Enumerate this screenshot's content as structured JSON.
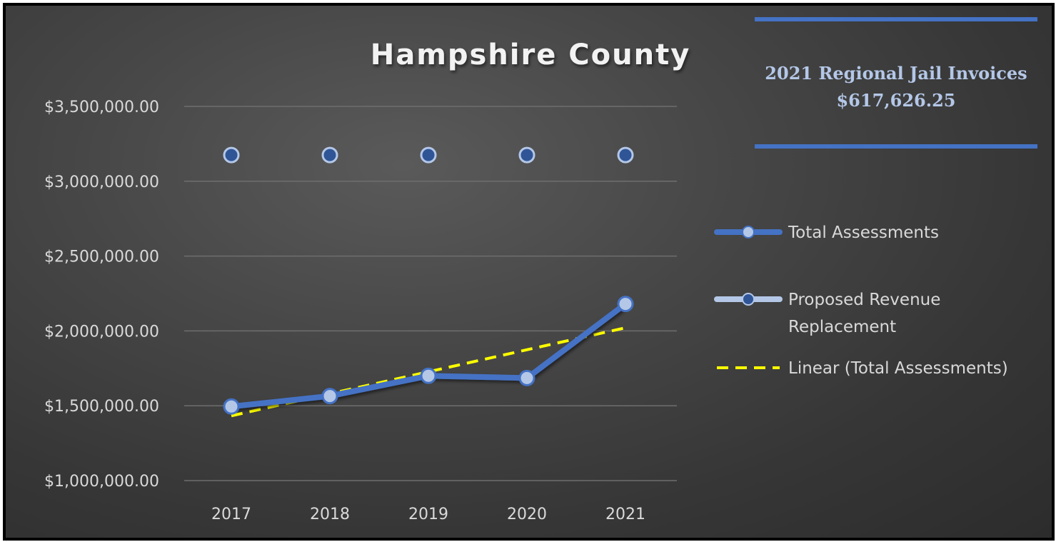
{
  "info_box": {
    "line1": "2021 Regional Jail Invoices",
    "line2": "$617,626.25"
  },
  "chart_data": {
    "type": "line",
    "title": "Hampshire County",
    "xlabel": "",
    "ylabel": "",
    "categories": [
      "2017",
      "2018",
      "2019",
      "2020",
      "2021"
    ],
    "ylim": [
      1000000,
      3500000
    ],
    "yticks": [
      1000000,
      1500000,
      2000000,
      2500000,
      3000000,
      3500000
    ],
    "ytick_labels": [
      "$1,000,000.00",
      "$1,500,000.00",
      "$2,000,000.00",
      "$2,500,000.00",
      "$3,000,000.00",
      "$3,500,000.00"
    ],
    "grid": true,
    "legend_position": "right",
    "series": [
      {
        "name": "Total Assessments",
        "values": [
          1495000,
          1565000,
          1700000,
          1685000,
          2180000
        ],
        "line_color": "#4472c4",
        "marker_color": "#b4c7e7",
        "style": "solid"
      },
      {
        "name": "Proposed Revenue Replacement",
        "values": [
          3175000,
          3175000,
          3175000,
          3175000,
          3175000
        ],
        "line_color": "#b4c7e7",
        "marker_color": "#2f5597",
        "style": "solid"
      },
      {
        "name": "Linear (Total Assessments)",
        "values": [
          1433000,
          1580000,
          1727000,
          1874000,
          2021000
        ],
        "line_color": "#ffff00",
        "style": "dashed"
      }
    ]
  }
}
